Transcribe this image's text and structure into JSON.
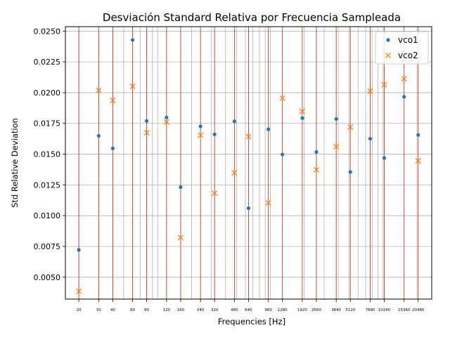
{
  "chart_data": {
    "type": "scatter",
    "title": "Desviación Standard Relativa por Frecuencia Sampleada",
    "xlabel": "Frequencies [Hz]",
    "ylabel": "Std Relative Deviation",
    "xscale": "log",
    "x_ticks": [
      20,
      30,
      40,
      60,
      80,
      120,
      160,
      240,
      320,
      480,
      640,
      960,
      1280,
      1920,
      2560,
      3840,
      5120,
      7680,
      10240,
      15360,
      20480
    ],
    "x_tick_labels": [
      "20",
      "30",
      "40",
      "60",
      "80",
      "120",
      "160",
      "240",
      "320",
      "480",
      "640",
      "960",
      "1280",
      "1920",
      "2560",
      "3840",
      "5120",
      "7680",
      "10240",
      "15360",
      "20480"
    ],
    "y_ticks": [
      0.005,
      0.0075,
      0.01,
      0.0125,
      0.015,
      0.0175,
      0.02,
      0.0225,
      0.025
    ],
    "y_tick_labels": [
      "0.0050",
      "0.0075",
      "0.0100",
      "0.0125",
      "0.0150",
      "0.0175",
      "0.0200",
      "0.0225",
      "0.0250"
    ],
    "xlim": [
      15.2,
      27000
    ],
    "ylim": [
      0.00322,
      0.02536
    ],
    "grid": true,
    "vertical_lines_color": "#c0392b",
    "legend_position": "top-right",
    "x": [
      20,
      30,
      40,
      60,
      80,
      120,
      160,
      240,
      320,
      480,
      640,
      960,
      1280,
      1920,
      2560,
      3840,
      5120,
      7680,
      10240,
      15360,
      20480
    ],
    "series": [
      {
        "name": "vco1",
        "marker": "dot",
        "color": "#1f77b4",
        "values": [
          0.00722,
          0.01649,
          0.01547,
          0.02428,
          0.0177,
          0.01798,
          0.01232,
          0.01726,
          0.01661,
          0.01767,
          0.01061,
          0.01702,
          0.01497,
          0.01793,
          0.01518,
          0.01786,
          0.01355,
          0.01625,
          0.01469,
          0.01966,
          0.01656
        ]
      },
      {
        "name": "vco2",
        "marker": "x",
        "color": "#ff7f0e",
        "values": [
          0.00385,
          0.02018,
          0.01937,
          0.02051,
          0.01674,
          0.01762,
          0.00822,
          0.01654,
          0.01182,
          0.01348,
          0.01643,
          0.01105,
          0.01955,
          0.01847,
          0.01373,
          0.01561,
          0.0172,
          0.02012,
          0.02065,
          0.02113,
          0.01445
        ]
      }
    ]
  }
}
